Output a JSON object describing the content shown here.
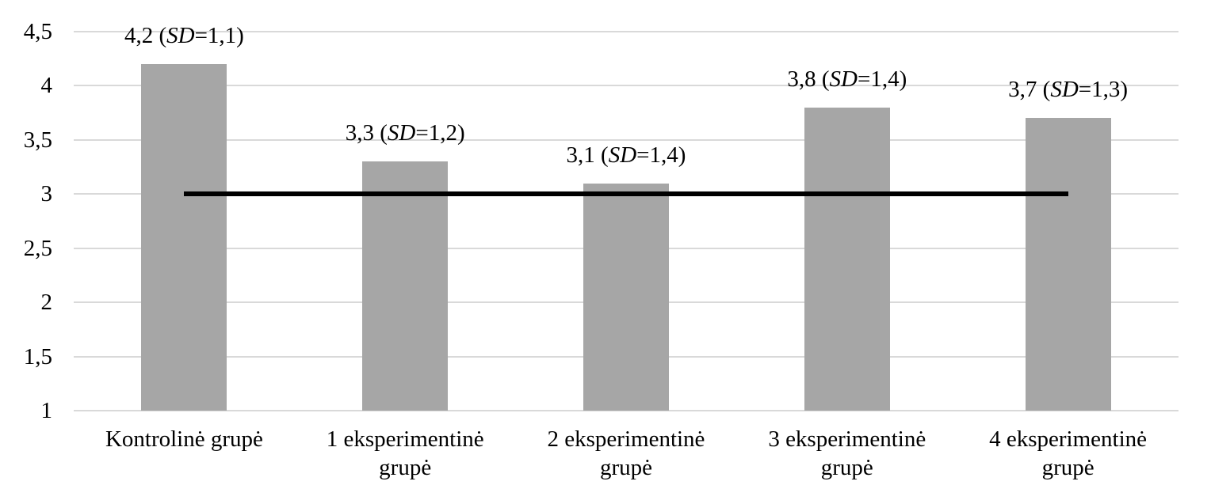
{
  "chart_data": {
    "type": "bar",
    "title": "",
    "categories": [
      "Kontrolinė grupė",
      "1 eksperimentinė grupė",
      "2 eksperimentinė grupė",
      "3 eksperimentinė grupė",
      "4 eksperimentinė grupė"
    ],
    "values": [
      4.2,
      3.3,
      3.1,
      3.8,
      3.7
    ],
    "sd_values": [
      1.1,
      1.2,
      1.4,
      1.4,
      1.3
    ],
    "bar_labels": [
      {
        "pre": "4,2 (",
        "italic": "SD",
        "post": "=1,1)"
      },
      {
        "pre": "3,3 (",
        "italic": "SD",
        "post": "=1,2)"
      },
      {
        "pre": "3,1 (",
        "italic": "SD",
        "post": "=1,4)"
      },
      {
        "pre": "3,8 (",
        "italic": "SD",
        "post": "=1,4)"
      },
      {
        "pre": "3,7 (",
        "italic": "SD",
        "post": "=1,3)"
      }
    ],
    "y_axis": {
      "min": 1,
      "max": 4.5,
      "step": 0.5,
      "ticks": [
        {
          "value": 4.5,
          "label": "4,5"
        },
        {
          "value": 4,
          "label": "4"
        },
        {
          "value": 3.5,
          "label": "3,5"
        },
        {
          "value": 3,
          "label": "3"
        },
        {
          "value": 2.5,
          "label": "2,5"
        },
        {
          "value": 2,
          "label": "2"
        },
        {
          "value": 1.5,
          "label": "1,5"
        },
        {
          "value": 1,
          "label": "1"
        }
      ]
    },
    "xlabel": "",
    "ylabel": "",
    "grid": true,
    "legend": false,
    "reference_line": {
      "value": 3,
      "from_category_index": 0,
      "to_category_index": 4,
      "color": "#000000"
    },
    "colors": {
      "bar": "#a6a6a6",
      "gridline": "#d9d9d9",
      "reference_line": "#000000",
      "text": "#000000",
      "background": "#ffffff"
    }
  }
}
